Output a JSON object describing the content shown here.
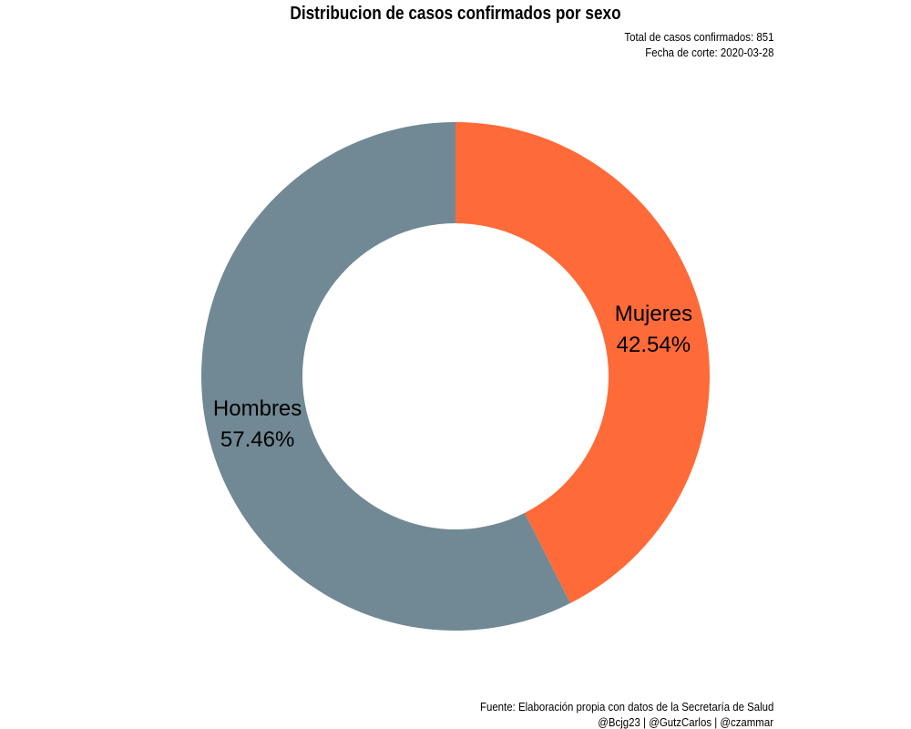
{
  "chart_data": {
    "type": "pie",
    "title": "Distribucion de casos confirmados por sexo",
    "subtitle": [
      "Total de casos confirmados: 851",
      "Fecha de corte: 2020-03-28"
    ],
    "caption": [
      "Fuente: Elaboración propia con datos de la Secretaría de Salud",
      "@Bcjg23 | @GutzCarlos | @czammar"
    ],
    "donut": true,
    "slices": [
      {
        "name": "Mujeres",
        "value": 42.54,
        "label": "42.54%",
        "color": "#FF6A39"
      },
      {
        "name": "Hombres",
        "value": 57.46,
        "label": "57.46%",
        "color": "#718994"
      }
    ],
    "legend": "none"
  }
}
